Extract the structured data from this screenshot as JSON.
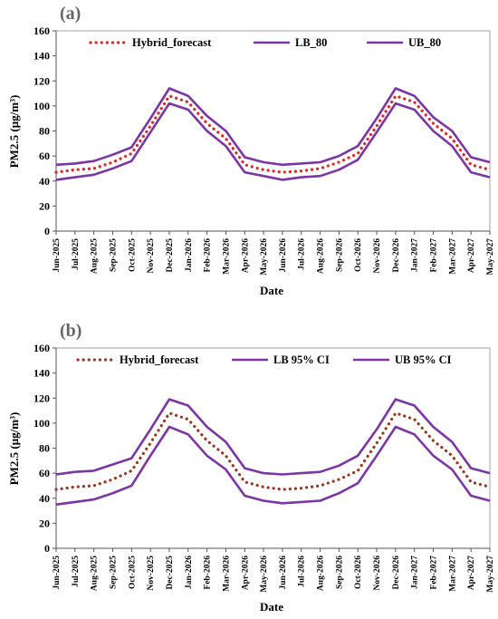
{
  "chart_data": [
    {
      "type": "line",
      "panel_label": "(a)",
      "xlabel": "Date",
      "ylabel": "PM2.5 (μg/m³)",
      "ylim": [
        0,
        160
      ],
      "yticks": [
        0,
        20,
        40,
        60,
        80,
        100,
        120,
        140,
        160
      ],
      "grid": false,
      "legend_placement": "top",
      "categories": [
        "Jun-2025",
        "Jul-2025",
        "Aug-2025",
        "Sep-2025",
        "Oct-2025",
        "Nov-2025",
        "Dec-2025",
        "Jan-2026",
        "Feb-2026",
        "Mar-2026",
        "Apr-2026",
        "May-2026",
        "Jun-2026",
        "Jul-2026",
        "Aug-2026",
        "Sep-2026",
        "Oct-2026",
        "Nov-2026",
        "Dec-2026",
        "Jan-2027",
        "Feb-2027",
        "Mar-2027",
        "Apr-2027",
        "May-2027"
      ],
      "series": [
        {
          "name": "Hybrid_forecast",
          "color": "#e8231f",
          "style": "dotted",
          "values": [
            47,
            49,
            50,
            55,
            62,
            84,
            108,
            103,
            86,
            74,
            53,
            49,
            47,
            48,
            50,
            55,
            62,
            84,
            108,
            103,
            86,
            74,
            53,
            49
          ]
        },
        {
          "name": "LB_80",
          "color": "#7b35a6",
          "style": "solid",
          "values": [
            41,
            43,
            45,
            50,
            56,
            79,
            102,
            97,
            80,
            68,
            47,
            44,
            41,
            43,
            44,
            49,
            57,
            79,
            102,
            97,
            80,
            68,
            47,
            43
          ]
        },
        {
          "name": "UB_80",
          "color": "#7b35a6",
          "style": "solid",
          "values": [
            53,
            54,
            56,
            61,
            67,
            90,
            114,
            108,
            92,
            80,
            59,
            55,
            53,
            54,
            55,
            60,
            68,
            90,
            114,
            108,
            91,
            80,
            59,
            55
          ]
        }
      ]
    },
    {
      "type": "line",
      "panel_label": "(b)",
      "xlabel": "Date",
      "ylabel": "PM2.5 (μg/m³)",
      "ylim": [
        0,
        160
      ],
      "yticks": [
        0,
        20,
        40,
        60,
        80,
        100,
        120,
        140,
        160
      ],
      "grid": false,
      "legend_placement": "top",
      "categories": [
        "Jun-2025",
        "Jul-2025",
        "Aug-2025",
        "Sep-2025",
        "Oct-2025",
        "Nov-2025",
        "Dec-2025",
        "Jan-2026",
        "Feb-2026",
        "Mar-2026",
        "Apr-2026",
        "May-2026",
        "Jun-2026",
        "Jul-2026",
        "Aug-2026",
        "Sep-2026",
        "Oct-2026",
        "Nov-2026",
        "Dec-2026",
        "Jan-2027",
        "Feb-2027",
        "Mar-2027",
        "Apr-2027",
        "May-2027"
      ],
      "series": [
        {
          "name": "Hybrid_forecast",
          "color": "#a0341c",
          "style": "dotted",
          "values": [
            47,
            49,
            50,
            55,
            62,
            84,
            108,
            103,
            86,
            74,
            53,
            49,
            47,
            48,
            50,
            55,
            62,
            84,
            108,
            103,
            86,
            74,
            53,
            49
          ]
        },
        {
          "name": "LB 95% CI",
          "color": "#7b35a6",
          "style": "solid",
          "values": [
            35,
            37,
            39,
            44,
            50,
            74,
            97,
            91,
            74,
            63,
            42,
            38,
            36,
            37,
            38,
            44,
            52,
            74,
            97,
            91,
            74,
            63,
            42,
            38
          ]
        },
        {
          "name": "UB 95% CI",
          "color": "#7b35a6",
          "style": "solid",
          "values": [
            59,
            61,
            62,
            67,
            72,
            95,
            119,
            114,
            97,
            85,
            64,
            60,
            59,
            60,
            61,
            66,
            74,
            95,
            119,
            114,
            97,
            85,
            64,
            60
          ]
        }
      ]
    }
  ]
}
